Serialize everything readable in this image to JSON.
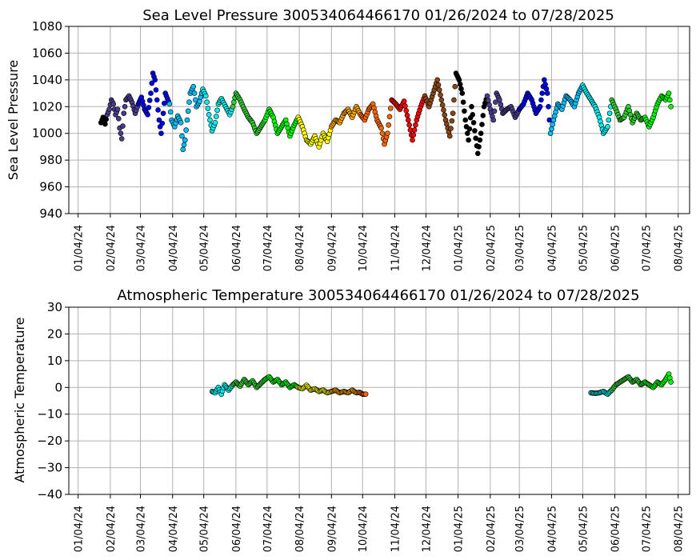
{
  "chart_data": [
    {
      "type": "scatter",
      "title": "Sea Level Pressure 300534064466170  01/26/2024 to 07/28/2025",
      "ylabel": "Sea Level Pressure",
      "xlabel": "",
      "xlim": [
        "2023-12-26",
        "2025-08-15"
      ],
      "ylim": [
        940,
        1080
      ],
      "yticks": [
        940,
        960,
        980,
        1000,
        1020,
        1040,
        1060,
        1080
      ],
      "xticks": [
        "2024-01-04",
        "2024-02-04",
        "2024-03-04",
        "2024-04-04",
        "2024-05-04",
        "2024-06-04",
        "2024-07-04",
        "2024-08-04",
        "2024-09-04",
        "2024-10-04",
        "2024-11-04",
        "2024-12-04",
        "2025-01-04",
        "2025-02-04",
        "2025-03-04",
        "2025-04-04",
        "2025-05-04",
        "2025-06-04",
        "2025-07-04",
        "2025-08-04"
      ],
      "xtick_labels": [
        "01/04/24",
        "02/04/24",
        "03/04/24",
        "04/04/24",
        "05/04/24",
        "06/04/24",
        "07/04/24",
        "08/04/24",
        "09/04/24",
        "10/04/24",
        "11/04/24",
        "12/04/24",
        "01/04/25",
        "02/04/25",
        "03/04/25",
        "04/04/25",
        "05/04/25",
        "06/04/25",
        "07/04/25",
        "08/04/25"
      ],
      "grid": true,
      "points": [
        [
          "2024-01-26",
          1008
        ],
        [
          "2024-01-28",
          1012
        ],
        [
          "2024-01-30",
          1007
        ],
        [
          "2024-02-01",
          1014
        ],
        [
          "2024-02-03",
          1018
        ],
        [
          "2024-02-05",
          1025
        ],
        [
          "2024-02-07",
          1022
        ],
        [
          "2024-02-09",
          1014
        ],
        [
          "2024-02-11",
          1018
        ],
        [
          "2024-02-13",
          1004
        ],
        [
          "2024-02-15",
          996
        ],
        [
          "2024-02-17",
          1015
        ],
        [
          "2024-02-19",
          1025
        ],
        [
          "2024-02-22",
          1028
        ],
        [
          "2024-02-25",
          1023
        ],
        [
          "2024-02-28",
          1015
        ],
        [
          "2024-03-02",
          1022
        ],
        [
          "2024-03-05",
          1027
        ],
        [
          "2024-03-08",
          1018
        ],
        [
          "2024-03-11",
          1014
        ],
        [
          "2024-03-14",
          1030
        ],
        [
          "2024-03-16",
          1045
        ],
        [
          "2024-03-18",
          1040
        ],
        [
          "2024-03-20",
          1025
        ],
        [
          "2024-03-22",
          1010
        ],
        [
          "2024-03-24",
          1000
        ],
        [
          "2024-03-26",
          1015
        ],
        [
          "2024-03-28",
          1030
        ],
        [
          "2024-04-01",
          1022
        ],
        [
          "2024-04-03",
          1010
        ],
        [
          "2024-04-06",
          1005
        ],
        [
          "2024-04-09",
          1013
        ],
        [
          "2024-04-12",
          1008
        ],
        [
          "2024-04-14",
          988
        ],
        [
          "2024-04-16",
          995
        ],
        [
          "2024-04-18",
          1010
        ],
        [
          "2024-04-21",
          1030
        ],
        [
          "2024-04-24",
          1035
        ],
        [
          "2024-04-27",
          1020
        ],
        [
          "2024-04-30",
          1024
        ],
        [
          "2024-05-03",
          1033
        ],
        [
          "2024-05-06",
          1028
        ],
        [
          "2024-05-09",
          1014
        ],
        [
          "2024-05-12",
          1002
        ],
        [
          "2024-05-15",
          1008
        ],
        [
          "2024-05-18",
          1022
        ],
        [
          "2024-05-21",
          1026
        ],
        [
          "2024-05-25",
          1020
        ],
        [
          "2024-05-29",
          1014
        ],
        [
          "2024-06-01",
          1020
        ],
        [
          "2024-06-04",
          1030
        ],
        [
          "2024-06-08",
          1025
        ],
        [
          "2024-06-12",
          1018
        ],
        [
          "2024-06-16",
          1012
        ],
        [
          "2024-06-20",
          1008
        ],
        [
          "2024-06-24",
          1000
        ],
        [
          "2024-06-28",
          1005
        ],
        [
          "2024-07-02",
          1010
        ],
        [
          "2024-07-06",
          1018
        ],
        [
          "2024-07-10",
          1012
        ],
        [
          "2024-07-14",
          1000
        ],
        [
          "2024-07-18",
          1005
        ],
        [
          "2024-07-22",
          1010
        ],
        [
          "2024-07-26",
          998
        ],
        [
          "2024-07-30",
          1006
        ],
        [
          "2024-08-03",
          1012
        ],
        [
          "2024-08-07",
          1005
        ],
        [
          "2024-08-11",
          995
        ],
        [
          "2024-08-15",
          992
        ],
        [
          "2024-08-19",
          998
        ],
        [
          "2024-08-23",
          990
        ],
        [
          "2024-08-27",
          1000
        ],
        [
          "2024-08-31",
          994
        ],
        [
          "2024-09-04",
          1005
        ],
        [
          "2024-09-08",
          1010
        ],
        [
          "2024-09-12",
          1008
        ],
        [
          "2024-09-16",
          1015
        ],
        [
          "2024-09-20",
          1018
        ],
        [
          "2024-09-24",
          1012
        ],
        [
          "2024-09-28",
          1020
        ],
        [
          "2024-10-02",
          1014
        ],
        [
          "2024-10-06",
          1010
        ],
        [
          "2024-10-10",
          1018
        ],
        [
          "2024-10-14",
          1022
        ],
        [
          "2024-10-18",
          1010
        ],
        [
          "2024-10-22",
          1004
        ],
        [
          "2024-10-25",
          992
        ],
        [
          "2024-10-28",
          1000
        ],
        [
          "2024-11-01",
          1025
        ],
        [
          "2024-11-05",
          1022
        ],
        [
          "2024-11-09",
          1018
        ],
        [
          "2024-11-13",
          1024
        ],
        [
          "2024-11-17",
          1010
        ],
        [
          "2024-11-21",
          995
        ],
        [
          "2024-11-25",
          1010
        ],
        [
          "2024-11-29",
          1020
        ],
        [
          "2024-12-03",
          1028
        ],
        [
          "2024-12-07",
          1020
        ],
        [
          "2024-12-11",
          1030
        ],
        [
          "2024-12-15",
          1040
        ],
        [
          "2024-12-19",
          1025
        ],
        [
          "2024-12-23",
          1010
        ],
        [
          "2024-12-27",
          998
        ],
        [
          "2024-12-30",
          1015
        ],
        [
          "2025-01-02",
          1045
        ],
        [
          "2025-01-05",
          1040
        ],
        [
          "2025-01-08",
          1030
        ],
        [
          "2025-01-11",
          1010
        ],
        [
          "2025-01-14",
          995
        ],
        [
          "2025-01-17",
          1020
        ],
        [
          "2025-01-20",
          1002
        ],
        [
          "2025-01-23",
          985
        ],
        [
          "2025-01-26",
          1000
        ],
        [
          "2025-01-29",
          1020
        ],
        [
          "2025-02-01",
          1028
        ],
        [
          "2025-02-04",
          1018
        ],
        [
          "2025-02-07",
          1010
        ],
        [
          "2025-02-10",
          1030
        ],
        [
          "2025-02-13",
          1025
        ],
        [
          "2025-02-16",
          1015
        ],
        [
          "2025-02-20",
          1018
        ],
        [
          "2025-02-24",
          1020
        ],
        [
          "2025-02-28",
          1012
        ],
        [
          "2025-03-04",
          1018
        ],
        [
          "2025-03-08",
          1022
        ],
        [
          "2025-03-12",
          1030
        ],
        [
          "2025-03-16",
          1025
        ],
        [
          "2025-03-20",
          1015
        ],
        [
          "2025-03-24",
          1020
        ],
        [
          "2025-03-28",
          1040
        ],
        [
          "2025-03-31",
          1030
        ],
        [
          "2025-04-03",
          1000
        ],
        [
          "2025-04-06",
          1010
        ],
        [
          "2025-04-10",
          1022
        ],
        [
          "2025-04-14",
          1018
        ],
        [
          "2025-04-18",
          1028
        ],
        [
          "2025-04-22",
          1025
        ],
        [
          "2025-04-26",
          1020
        ],
        [
          "2025-04-30",
          1030
        ],
        [
          "2025-05-04",
          1036
        ],
        [
          "2025-05-08",
          1030
        ],
        [
          "2025-05-12",
          1025
        ],
        [
          "2025-05-16",
          1020
        ],
        [
          "2025-05-20",
          1012
        ],
        [
          "2025-05-24",
          1000
        ],
        [
          "2025-05-28",
          1005
        ],
        [
          "2025-06-01",
          1025
        ],
        [
          "2025-06-05",
          1018
        ],
        [
          "2025-06-09",
          1010
        ],
        [
          "2025-06-13",
          1012
        ],
        [
          "2025-06-17",
          1020
        ],
        [
          "2025-06-21",
          1008
        ],
        [
          "2025-06-25",
          1015
        ],
        [
          "2025-06-29",
          1010
        ],
        [
          "2025-07-03",
          1012
        ],
        [
          "2025-07-07",
          1005
        ],
        [
          "2025-07-11",
          1012
        ],
        [
          "2025-07-15",
          1022
        ],
        [
          "2025-07-19",
          1028
        ],
        [
          "2025-07-23",
          1025
        ],
        [
          "2025-07-26",
          1030
        ],
        [
          "2025-07-28",
          1020
        ]
      ]
    },
    {
      "type": "scatter",
      "title": "Atmospheric Temperature 300534064466170  01/26/2024 to 07/28/2025",
      "ylabel": "Atmospheric Temperature",
      "xlabel": "",
      "xlim": [
        "2023-12-26",
        "2025-08-15"
      ],
      "ylim": [
        -40,
        30
      ],
      "yticks": [
        -40,
        -30,
        -20,
        -10,
        0,
        10,
        20,
        30
      ],
      "xticks": [
        "2024-01-04",
        "2024-02-04",
        "2024-03-04",
        "2024-04-04",
        "2024-05-04",
        "2024-06-04",
        "2024-07-04",
        "2024-08-04",
        "2024-09-04",
        "2024-10-04",
        "2024-11-04",
        "2024-12-04",
        "2025-01-04",
        "2025-02-04",
        "2025-03-04",
        "2025-04-04",
        "2025-05-04",
        "2025-06-04",
        "2025-07-04",
        "2025-08-04"
      ],
      "xtick_labels": [
        "01/04/24",
        "02/04/24",
        "03/04/24",
        "04/04/24",
        "05/04/24",
        "06/04/24",
        "07/04/24",
        "08/04/24",
        "09/04/24",
        "10/04/24",
        "11/04/24",
        "12/04/24",
        "01/04/25",
        "02/04/25",
        "03/04/25",
        "04/04/25",
        "05/04/25",
        "06/04/25",
        "07/04/25",
        "08/04/25"
      ],
      "grid": true,
      "points": [
        [
          "2024-05-12",
          -1.5
        ],
        [
          "2024-05-15",
          -2
        ],
        [
          "2024-05-18",
          0
        ],
        [
          "2024-05-21",
          -2.5
        ],
        [
          "2024-05-24",
          1
        ],
        [
          "2024-05-28",
          -1
        ],
        [
          "2024-06-01",
          1
        ],
        [
          "2024-06-04",
          2
        ],
        [
          "2024-06-08",
          0.5
        ],
        [
          "2024-06-12",
          3
        ],
        [
          "2024-06-16",
          1
        ],
        [
          "2024-06-20",
          2.5
        ],
        [
          "2024-06-24",
          0
        ],
        [
          "2024-06-28",
          1.5
        ],
        [
          "2024-07-02",
          3
        ],
        [
          "2024-07-06",
          4
        ],
        [
          "2024-07-10",
          2
        ],
        [
          "2024-07-14",
          3
        ],
        [
          "2024-07-18",
          1
        ],
        [
          "2024-07-22",
          2
        ],
        [
          "2024-07-26",
          0
        ],
        [
          "2024-07-30",
          1
        ],
        [
          "2024-08-03",
          0
        ],
        [
          "2024-08-07",
          -0.5
        ],
        [
          "2024-08-11",
          0.8
        ],
        [
          "2024-08-15",
          -1
        ],
        [
          "2024-08-19",
          -0.5
        ],
        [
          "2024-08-23",
          -1.5
        ],
        [
          "2024-08-27",
          -1
        ],
        [
          "2024-08-31",
          -2
        ],
        [
          "2024-09-04",
          -1.5
        ],
        [
          "2024-09-08",
          -1
        ],
        [
          "2024-09-12",
          -2
        ],
        [
          "2024-09-16",
          -1.5
        ],
        [
          "2024-09-20",
          -2
        ],
        [
          "2024-09-24",
          -1
        ],
        [
          "2024-09-28",
          -2
        ],
        [
          "2024-10-01",
          -1.8
        ],
        [
          "2024-10-04",
          -2.5
        ],
        [
          "2024-10-07",
          -2.5
        ],
        [
          "2025-05-12",
          -2
        ],
        [
          "2025-05-16",
          -2.2
        ],
        [
          "2025-05-20",
          -2
        ],
        [
          "2025-05-24",
          -1.5
        ],
        [
          "2025-05-28",
          -2.5
        ],
        [
          "2025-06-01",
          -1
        ],
        [
          "2025-06-05",
          1
        ],
        [
          "2025-06-09",
          2
        ],
        [
          "2025-06-13",
          3
        ],
        [
          "2025-06-17",
          4
        ],
        [
          "2025-06-21",
          2
        ],
        [
          "2025-06-25",
          3
        ],
        [
          "2025-06-29",
          1
        ],
        [
          "2025-07-03",
          2
        ],
        [
          "2025-07-07",
          1
        ],
        [
          "2025-07-11",
          0
        ],
        [
          "2025-07-15",
          2
        ],
        [
          "2025-07-19",
          1
        ],
        [
          "2025-07-23",
          3
        ],
        [
          "2025-07-26",
          5
        ],
        [
          "2025-07-28",
          2
        ]
      ]
    }
  ],
  "palette": {
    "2024-01": "#000000",
    "2024-02": "#483D8B",
    "2024-03": "#0000EE",
    "2024-04": "#00BFFF",
    "2024-05": "#00EEEE",
    "2024-06": "#32CD32",
    "2024-07": "#00FF00",
    "2024-08": "#FFFF00",
    "2024-09": "#FFA500",
    "2024-10": "#FF6600",
    "2024-11": "#FF0000",
    "2024-12": "#8B4513",
    "2025-01": "#000000",
    "2025-02": "#483D8B",
    "2025-03": "#0000EE",
    "2025-04": "#00BFFF",
    "2025-05": "#00EEEE",
    "2025-06": "#32CD32",
    "2025-07": "#00FF00"
  }
}
